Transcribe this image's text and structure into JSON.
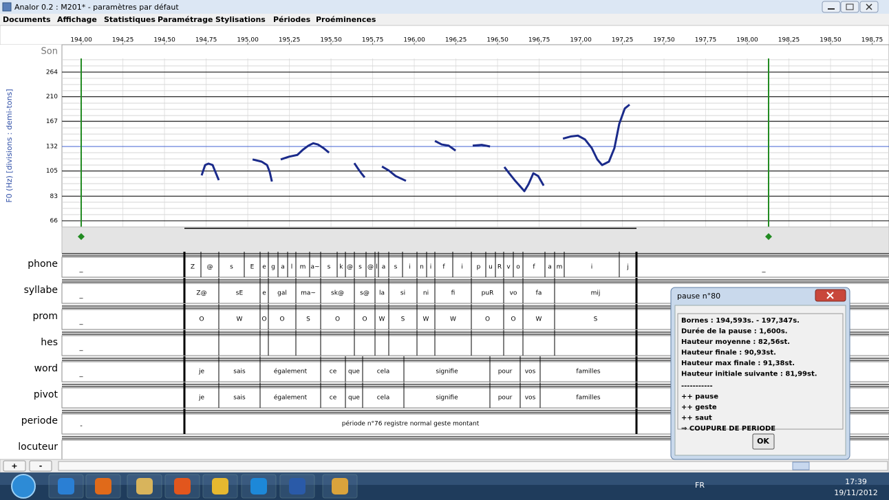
{
  "window": {
    "title": "Analor 0.2 : M201* - paramètres par défaut"
  },
  "menu": [
    "Documents",
    "Affichage",
    "Statistiques",
    "Paramétrage",
    "Stylisations",
    "Périodes",
    "Proéminences"
  ],
  "f0_plot": {
    "type": "line",
    "sound_label": "Son",
    "y_label": "F0 (Hz) [divisions : demi-tons]",
    "log_scale": true,
    "xlim": [
      193.884,
      198.851
    ],
    "ylim": [
      62.3,
      300
    ],
    "xticks": [
      {
        "value": 194.0,
        "label": "194,00"
      },
      {
        "value": 194.25,
        "label": "194,25"
      },
      {
        "value": 194.5,
        "label": "194,50"
      },
      {
        "value": 194.75,
        "label": "194,75"
      },
      {
        "value": 195.0,
        "label": "195,00"
      },
      {
        "value": 195.25,
        "label": "195,25"
      },
      {
        "value": 195.5,
        "label": "195,50"
      },
      {
        "value": 195.75,
        "label": "195,75"
      },
      {
        "value": 196.0,
        "label": "196,00"
      },
      {
        "value": 196.25,
        "label": "196,25"
      },
      {
        "value": 196.5,
        "label": "196,50"
      },
      {
        "value": 196.75,
        "label": "196,75"
      },
      {
        "value": 197.0,
        "label": "197,00"
      },
      {
        "value": 197.25,
        "label": "197,25"
      },
      {
        "value": 197.5,
        "label": "197,50"
      },
      {
        "value": 197.75,
        "label": "197,75"
      },
      {
        "value": 198.0,
        "label": "198,00"
      },
      {
        "value": 198.25,
        "label": "198,25"
      },
      {
        "value": 198.5,
        "label": "198,50"
      },
      {
        "value": 198.75,
        "label": "198,75"
      }
    ],
    "yticks": [
      66,
      83,
      105,
      132,
      167,
      210,
      264
    ],
    "reference_line": {
      "value": 132,
      "color": "#4060d0"
    },
    "color": "#1a2a8a",
    "segments": [
      {
        "t": [
          194.723,
          194.744,
          194.764,
          194.789,
          194.806,
          194.826
        ],
        "hz": [
          100.8,
          111,
          112.5,
          111,
          104,
          96.4
        ]
      },
      {
        "t": [
          195.029,
          195.083,
          195.116,
          195.132,
          195.145
        ],
        "hz": [
          117,
          114.6,
          111,
          104,
          95.2
        ]
      },
      {
        "t": [
          195.198,
          195.248,
          195.298,
          195.331,
          195.364,
          195.393,
          195.421,
          195.455,
          195.488
        ],
        "hz": [
          117,
          120,
          122,
          128,
          133,
          136,
          134.5,
          130,
          124.6
        ]
      },
      {
        "t": [
          195.64,
          195.661,
          195.682,
          195.702
        ],
        "hz": [
          113,
          107.6,
          102.8,
          98.9
        ]
      },
      {
        "t": [
          195.806,
          195.847,
          195.888,
          195.95
        ],
        "hz": [
          109.5,
          105.5,
          100.2,
          95.8
        ]
      },
      {
        "t": [
          196.124,
          196.165,
          196.207,
          196.248
        ],
        "hz": [
          139,
          134.5,
          133,
          127
        ]
      },
      {
        "t": [
          196.351,
          196.405,
          196.455
        ],
        "hz": [
          133,
          134,
          132
        ]
      },
      {
        "t": [
          196.541,
          196.57,
          196.603,
          196.632,
          196.661,
          196.686,
          196.715,
          196.744,
          196.777
        ],
        "hz": [
          109,
          102.8,
          96.4,
          91.6,
          87,
          92.8,
          102.8,
          100.2,
          91.6
        ]
      },
      {
        "t": [
          196.893,
          196.942,
          196.983,
          197.025,
          197.066,
          197.099,
          197.128,
          197.169,
          197.202,
          197.231,
          197.264,
          197.293
        ],
        "hz": [
          142,
          145,
          146,
          141,
          130,
          117,
          111,
          114.6,
          130,
          163,
          188,
          195
        ]
      }
    ]
  },
  "tiers": [
    {
      "name": "phone",
      "first": "_",
      "cells": [
        "Z",
        "@",
        "s",
        "E",
        "e",
        "g",
        "a",
        "l",
        "m",
        "a~",
        "s",
        "k",
        "@",
        "s",
        "@",
        "l",
        "a",
        "s",
        "i",
        "n",
        "i",
        "f",
        "i",
        "p",
        "u",
        "R",
        "v",
        "o",
        "f",
        "a",
        "m",
        "i",
        "j"
      ],
      "last": "_"
    },
    {
      "name": "syllabe",
      "first": "_",
      "cells": [
        "Z@",
        "sE",
        "e",
        "gal",
        "ma~",
        "sk@",
        "s@",
        "la",
        "si",
        "ni",
        "fi",
        "puR",
        "vo",
        "fa",
        "mij"
      ]
    },
    {
      "name": "prom",
      "first": "_",
      "cells": [
        "O",
        "W",
        "O",
        "O",
        "S",
        "O",
        "O",
        "W",
        "S",
        "W",
        "W",
        "O",
        "O",
        "W",
        "S"
      ]
    },
    {
      "name": "hes",
      "first": "_",
      "cells": []
    },
    {
      "name": "word",
      "first": "_",
      "cells": [
        "je",
        "sais",
        "également",
        "ce",
        "que",
        "cela",
        "signifie",
        "pour",
        "vos",
        "familles"
      ]
    },
    {
      "name": "pivot",
      "cells": [
        "je",
        "sais",
        "également",
        "ce",
        "que",
        "cela",
        "signifie",
        "pour",
        "vos",
        "familles"
      ]
    },
    {
      "name": "periode",
      "first": "-",
      "cells": [
        "période n°76 registre normal geste montant"
      ]
    },
    {
      "name": "locuteur",
      "cells": []
    }
  ],
  "dialog": {
    "title": "pause n°80",
    "lines": [
      "Bornes : 194,593s. - 197,347s.",
      "Durée de la pause : 1,600s.",
      "Hauteur moyenne : 82,56st.",
      "Hauteur finale : 90,93st.",
      "Hauteur max finale : 91,38st.",
      "Hauteur initiale suivante : 81,99st.",
      "-----------",
      "++ pause",
      "++ geste",
      "++ saut",
      "⇒ COUPURE DE PERIODE"
    ],
    "button": "OK"
  },
  "bottom_buttons": [
    "+",
    "-"
  ],
  "taskbar": {
    "language": "FR",
    "time": "17:39",
    "date": "19/11/2012"
  }
}
